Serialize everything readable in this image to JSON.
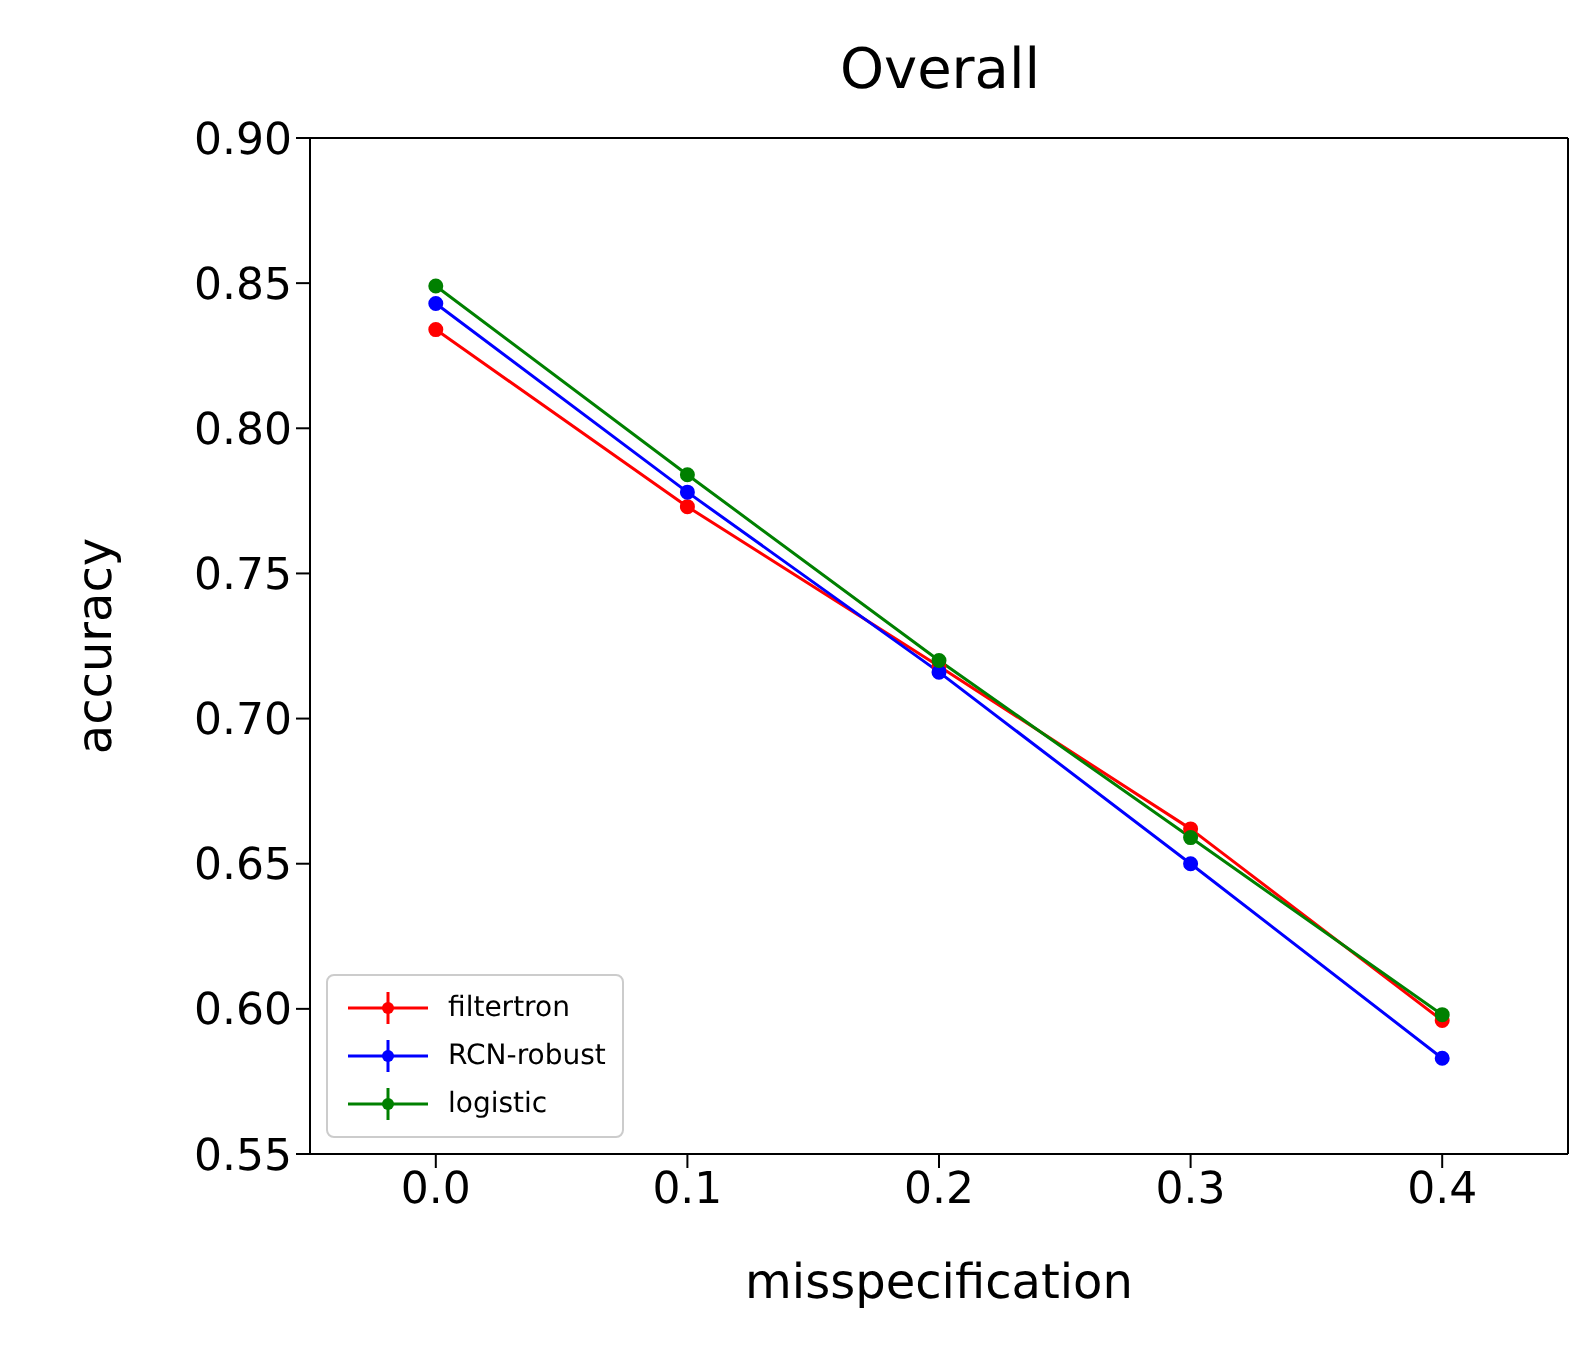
{
  "chart_data": {
    "type": "line",
    "title": "Overall",
    "xlabel": "misspecification",
    "ylabel": "accuracy",
    "x": [
      0.0,
      0.1,
      0.2,
      0.3,
      0.4
    ],
    "series": [
      {
        "name": "filtertron",
        "color": "#ff0000",
        "values": [
          0.834,
          0.773,
          0.718,
          0.662,
          0.596
        ]
      },
      {
        "name": "RCN-robust",
        "color": "#0000ff",
        "values": [
          0.843,
          0.778,
          0.716,
          0.65,
          0.583
        ]
      },
      {
        "name": "logistic",
        "color": "#008000",
        "values": [
          0.849,
          0.784,
          0.72,
          0.659,
          0.598
        ]
      }
    ],
    "xlim": [
      -0.05,
      0.45
    ],
    "xticks": [
      {
        "value": 0,
        "label": "0.0"
      },
      {
        "value": 0.1,
        "label": "0.1"
      },
      {
        "value": 0.2,
        "label": "0.2"
      },
      {
        "value": 0.3,
        "label": "0.3"
      },
      {
        "value": 0.4,
        "label": "0.4"
      }
    ],
    "ylim": [
      0.55,
      0.9
    ],
    "yticks": [
      {
        "value": 0.55,
        "label": "0.55"
      },
      {
        "value": 0.6,
        "label": "0.60"
      },
      {
        "value": 0.65,
        "label": "0.65"
      },
      {
        "value": 0.7,
        "label": "0.70"
      },
      {
        "value": 0.75,
        "label": "0.75"
      },
      {
        "value": 0.8,
        "label": "0.80"
      },
      {
        "value": 0.85,
        "label": "0.85"
      },
      {
        "value": 0.9,
        "label": "0.90"
      }
    ],
    "grid": false,
    "legend": "bottom left",
    "marker": "circle",
    "line_style": "solid"
  }
}
